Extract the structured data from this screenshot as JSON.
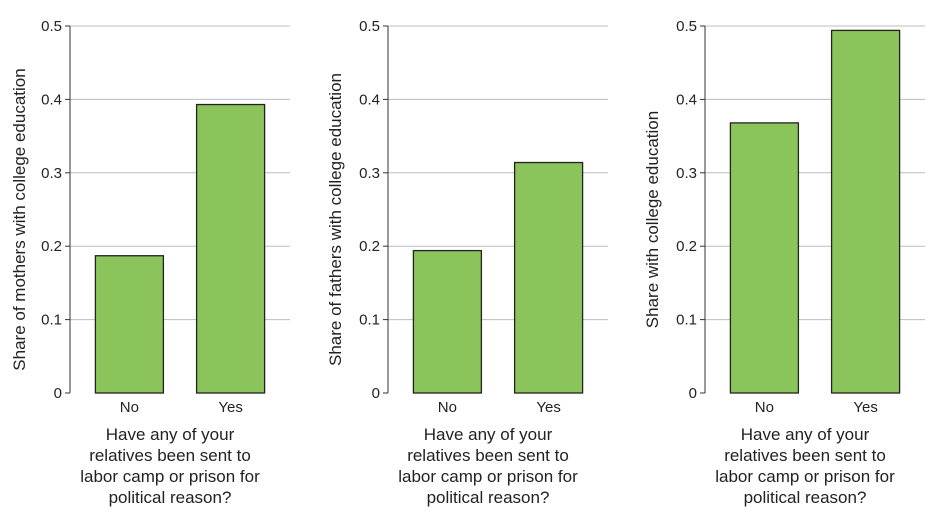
{
  "chart_data": [
    {
      "type": "bar",
      "categories": [
        "No",
        "Yes"
      ],
      "values": [
        0.187,
        0.393
      ],
      "ylabel": "Share of mothers with college education",
      "xlabel_lines": [
        "Have any of your",
        "relatives been sent to",
        "labor camp or prison for",
        "political reason?"
      ],
      "ylim": [
        0,
        0.5
      ],
      "yticks": [
        "0",
        "0.1",
        "0.2",
        "0.3",
        "0.4",
        "0.5"
      ],
      "grid": true,
      "bar_color": "#8bc45a"
    },
    {
      "type": "bar",
      "categories": [
        "No",
        "Yes"
      ],
      "values": [
        0.194,
        0.314
      ],
      "ylabel": "Share of fathers with college education",
      "xlabel_lines": [
        "Have any of your",
        "relatives been sent to",
        "labor camp or prison for",
        "political reason?"
      ],
      "ylim": [
        0,
        0.5
      ],
      "yticks": [
        "0",
        "0.1",
        "0.2",
        "0.3",
        "0.4",
        "0.5"
      ],
      "grid": true,
      "bar_color": "#8bc45a"
    },
    {
      "type": "bar",
      "categories": [
        "No",
        "Yes"
      ],
      "values": [
        0.368,
        0.494
      ],
      "ylabel": "Share with college education",
      "xlabel_lines": [
        "Have any of your",
        "relatives been sent to",
        "labor camp or prison for",
        "political reason?"
      ],
      "ylim": [
        0,
        0.5
      ],
      "yticks": [
        "0",
        "0.1",
        "0.2",
        "0.3",
        "0.4",
        "0.5"
      ],
      "grid": true,
      "bar_color": "#8bc45a"
    }
  ]
}
